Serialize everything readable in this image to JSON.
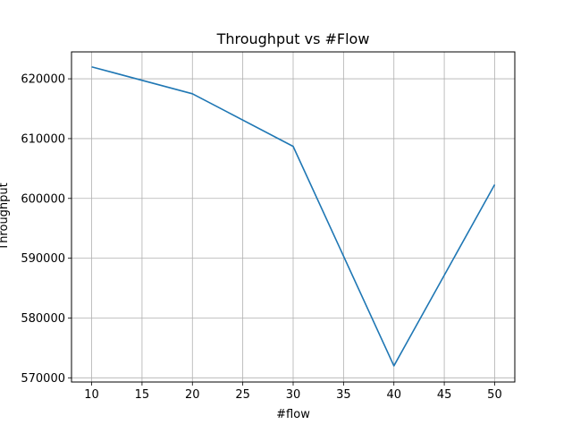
{
  "chart_data": {
    "type": "line",
    "title": "Throughput vs #Flow",
    "xlabel": "#flow",
    "ylabel": "Throughput",
    "x": [
      10,
      20,
      30,
      40,
      50
    ],
    "series": [
      {
        "values": [
          622000,
          617500,
          608700,
          572000,
          602300
        ]
      }
    ],
    "xlim": [
      8,
      52
    ],
    "ylim": [
      569300,
      624500
    ],
    "xticks": [
      10,
      15,
      20,
      25,
      30,
      35,
      40,
      45,
      50
    ],
    "yticks": [
      570000,
      580000,
      590000,
      600000,
      610000,
      620000
    ],
    "grid": true,
    "line_color": "#1f77b4"
  }
}
